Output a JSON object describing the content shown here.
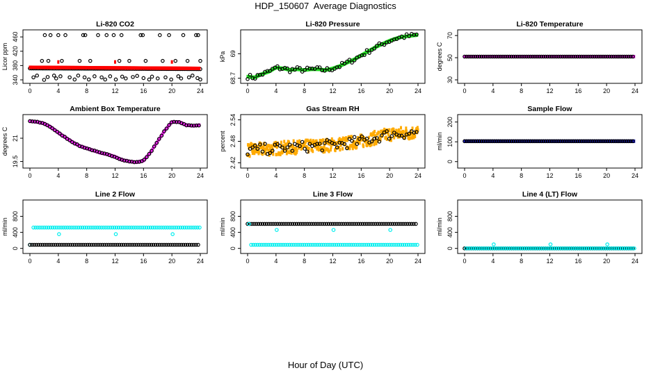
{
  "page": {
    "title": "HDP_150607  Average Diagnostics",
    "xlabel": "Hour of Day (UTC)"
  },
  "colors": {
    "red": "#ff0000",
    "green": "#22dd22",
    "magenta": "#ee22ee",
    "orange": "#ffaa00",
    "blue": "#1a1acc",
    "cyan": "#00eeee",
    "black": "#000000"
  },
  "chart_data": [
    {
      "type": "scatter",
      "title": "Li-820 CO2",
      "ylabel": "Licor ppm",
      "xlim": [
        0,
        24
      ],
      "ylim": [
        340,
        470
      ],
      "xticks": [
        0,
        4,
        8,
        12,
        16,
        20,
        24
      ],
      "yticks": [
        340,
        380,
        420,
        460
      ],
      "series": [
        {
          "style": "black-circle",
          "trend": {
            "from": 372,
            "to": 370
          },
          "spikes": [
            {
              "x": 2.1,
              "y": 465
            },
            {
              "x": 2.9,
              "y": 465
            },
            {
              "x": 4.0,
              "y": 465
            },
            {
              "x": 5.0,
              "y": 465
            },
            {
              "x": 7.5,
              "y": 465
            },
            {
              "x": 7.8,
              "y": 465
            },
            {
              "x": 9.6,
              "y": 465
            },
            {
              "x": 10.8,
              "y": 465
            },
            {
              "x": 11.8,
              "y": 465
            },
            {
              "x": 12.9,
              "y": 465
            },
            {
              "x": 15.6,
              "y": 465
            },
            {
              "x": 15.9,
              "y": 465
            },
            {
              "x": 18.3,
              "y": 465
            },
            {
              "x": 19.6,
              "y": 465
            },
            {
              "x": 21.6,
              "y": 465
            },
            {
              "x": 23.4,
              "y": 465
            },
            {
              "x": 23.7,
              "y": 465
            },
            {
              "x": 1.7,
              "y": 393
            },
            {
              "x": 2.6,
              "y": 393
            },
            {
              "x": 4.5,
              "y": 393
            },
            {
              "x": 7.0,
              "y": 393
            },
            {
              "x": 8.5,
              "y": 393
            },
            {
              "x": 12.6,
              "y": 393
            },
            {
              "x": 14.0,
              "y": 393
            },
            {
              "x": 16.3,
              "y": 393
            },
            {
              "x": 18.7,
              "y": 393
            },
            {
              "x": 20.5,
              "y": 393
            },
            {
              "x": 22.2,
              "y": 393
            },
            {
              "x": 24.0,
              "y": 393
            },
            {
              "x": 0.5,
              "y": 347
            },
            {
              "x": 1.0,
              "y": 352
            },
            {
              "x": 2.0,
              "y": 340
            },
            {
              "x": 2.5,
              "y": 348
            },
            {
              "x": 3.4,
              "y": 352
            },
            {
              "x": 3.7,
              "y": 344
            },
            {
              "x": 4.3,
              "y": 350
            },
            {
              "x": 5.6,
              "y": 347
            },
            {
              "x": 6.3,
              "y": 341
            },
            {
              "x": 6.8,
              "y": 352
            },
            {
              "x": 7.7,
              "y": 347
            },
            {
              "x": 8.3,
              "y": 341
            },
            {
              "x": 9.1,
              "y": 350
            },
            {
              "x": 10.1,
              "y": 347
            },
            {
              "x": 10.6,
              "y": 341
            },
            {
              "x": 11.3,
              "y": 350
            },
            {
              "x": 12.1,
              "y": 341
            },
            {
              "x": 13.0,
              "y": 349
            },
            {
              "x": 13.5,
              "y": 344
            },
            {
              "x": 14.5,
              "y": 348
            },
            {
              "x": 15.1,
              "y": 351
            },
            {
              "x": 16.0,
              "y": 345
            },
            {
              "x": 16.8,
              "y": 341
            },
            {
              "x": 17.2,
              "y": 349
            },
            {
              "x": 18.0,
              "y": 344
            },
            {
              "x": 19.1,
              "y": 347
            },
            {
              "x": 19.9,
              "y": 341
            },
            {
              "x": 20.9,
              "y": 350
            },
            {
              "x": 21.3,
              "y": 344
            },
            {
              "x": 22.4,
              "y": 347
            },
            {
              "x": 22.9,
              "y": 352
            },
            {
              "x": 23.6,
              "y": 345
            },
            {
              "x": 24.0,
              "y": 341
            }
          ]
        },
        {
          "style": "red-band",
          "from": 375,
          "to": 372,
          "spikes": [
            {
              "x": 4.0,
              "y": 390
            },
            {
              "x": 12.0,
              "y": 390
            },
            {
              "x": 20.0,
              "y": 390
            }
          ]
        }
      ]
    },
    {
      "type": "scatter",
      "title": "Li-820 Pressure",
      "ylabel": "kPa",
      "xlim": [
        0,
        24
      ],
      "ylim": [
        68.68,
        69.25
      ],
      "xticks": [
        0,
        4,
        8,
        12,
        16,
        20,
        24
      ],
      "yticks": [
        68.7,
        69.0
      ],
      "series": [
        {
          "style": "green-band",
          "x": [
            0,
            1,
            2,
            3,
            4,
            5,
            6,
            7,
            8,
            9,
            10,
            11,
            12,
            13,
            14,
            15,
            16,
            17,
            18,
            19,
            20,
            21,
            22,
            23,
            24
          ],
          "y": [
            68.72,
            68.71,
            68.75,
            68.78,
            68.83,
            68.82,
            68.8,
            68.81,
            68.8,
            68.81,
            68.81,
            68.8,
            68.82,
            68.85,
            68.89,
            68.93,
            68.98,
            69.03,
            69.08,
            69.12,
            69.16,
            69.19,
            69.21,
            69.22,
            69.23
          ]
        },
        {
          "style": "black-circle",
          "scatter": 0.03,
          "label": "points follow same trend"
        }
      ]
    },
    {
      "type": "scatter",
      "title": "Li-820 Temperature",
      "ylabel": "degrees C",
      "xlim": [
        0,
        24
      ],
      "ylim": [
        30,
        72
      ],
      "xticks": [
        0,
        4,
        8,
        12,
        16,
        20,
        24
      ],
      "yticks": [
        30,
        50,
        70
      ],
      "series": [
        {
          "style": "magenta-band",
          "value": 51
        },
        {
          "style": "black-circle",
          "value": 51
        }
      ]
    },
    {
      "type": "scatter",
      "title": "Ambient Box Temperature",
      "ylabel": "degrees C",
      "xlim": [
        0,
        24
      ],
      "ylim": [
        19.3,
        22.3
      ],
      "xticks": [
        0,
        4,
        8,
        12,
        16,
        20,
        24
      ],
      "yticks": [
        19.5,
        21.0
      ],
      "series": [
        {
          "style": "magenta-band",
          "x": [
            0,
            1,
            2,
            3,
            4,
            5,
            6,
            7,
            8,
            9,
            10,
            11,
            12,
            13,
            14,
            15,
            16,
            17,
            18,
            19,
            20,
            21,
            22,
            23,
            24
          ],
          "y": [
            22.1,
            22.05,
            21.95,
            21.7,
            21.35,
            21.05,
            20.75,
            20.5,
            20.35,
            20.2,
            20.05,
            19.95,
            19.8,
            19.6,
            19.5,
            19.45,
            19.55,
            20.1,
            20.8,
            21.5,
            22.05,
            22.05,
            21.85,
            21.8,
            21.85
          ]
        },
        {
          "style": "black-circle",
          "scatter": 0.02,
          "label": "points follow same trend"
        }
      ]
    },
    {
      "type": "scatter",
      "title": "Gas Stream RH",
      "ylabel": "percent",
      "xlim": [
        0,
        24
      ],
      "ylim": [
        2.415,
        2.545
      ],
      "xticks": [
        0,
        4,
        8,
        12,
        16,
        20,
        24
      ],
      "yticks": [
        2.42,
        2.48,
        2.54
      ],
      "series": [
        {
          "style": "orange-cloud",
          "x": [
            0,
            4,
            8,
            12,
            16,
            20,
            24
          ],
          "y": [
            2.455,
            2.46,
            2.465,
            2.47,
            2.48,
            2.5,
            2.505
          ],
          "spread": 0.018
        },
        {
          "style": "black-circle",
          "scatter": 0.015,
          "label": "points follow same trend"
        }
      ]
    },
    {
      "type": "scatter",
      "title": "Sample Flow",
      "ylabel": "ml/min",
      "xlim": [
        0,
        24
      ],
      "ylim": [
        -15,
        220
      ],
      "xticks": [
        0,
        4,
        8,
        12,
        16,
        20,
        24
      ],
      "yticks": [
        0,
        100,
        200
      ],
      "series": [
        {
          "style": "blue-band",
          "value": 103
        },
        {
          "style": "black-circle",
          "value": 103
        }
      ]
    },
    {
      "type": "scatter",
      "title": "Line 2 Flow",
      "ylabel": "ml/min",
      "xlim": [
        0,
        24
      ],
      "ylim": [
        -40,
        1120
      ],
      "xticks": [
        0,
        4,
        8,
        12,
        16,
        20,
        24
      ],
      "yticks": [
        0,
        400,
        800
      ],
      "series": [
        {
          "style": "cyan-circle",
          "value": 520,
          "spikes": [
            {
              "x": 4.1,
              "y": 355
            },
            {
              "x": 12.1,
              "y": 355
            },
            {
              "x": 20.1,
              "y": 355
            }
          ],
          "start": {
            "x": 0,
            "y": 90
          }
        },
        {
          "style": "black-circle",
          "value": 90
        }
      ]
    },
    {
      "type": "scatter",
      "title": "Line 3 Flow",
      "ylabel": "ml/min",
      "xlim": [
        0,
        24
      ],
      "ylim": [
        -40,
        1120
      ],
      "xticks": [
        0,
        4,
        8,
        12,
        16,
        20,
        24
      ],
      "yticks": [
        0,
        400,
        800
      ],
      "series": [
        {
          "style": "black-circle",
          "value": 610
        },
        {
          "style": "cyan-circle",
          "value": 90,
          "spikes": [
            {
              "x": 4.1,
              "y": 460
            },
            {
              "x": 12.1,
              "y": 460
            },
            {
              "x": 20.1,
              "y": 460
            }
          ],
          "start": {
            "x": 0.2,
            "y": 610
          }
        }
      ]
    },
    {
      "type": "scatter",
      "title": "Line 4 (LT) Flow",
      "ylabel": "ml/min",
      "xlim": [
        0,
        24
      ],
      "ylim": [
        -40,
        1120
      ],
      "xticks": [
        0,
        4,
        8,
        12,
        16,
        20,
        24
      ],
      "yticks": [
        0,
        400,
        800
      ],
      "series": [
        {
          "style": "black-circle",
          "value": 0
        },
        {
          "style": "cyan-circle",
          "value": 0,
          "spikes": [
            {
              "x": 4.1,
              "y": 100
            },
            {
              "x": 12.1,
              "y": 100
            },
            {
              "x": 20.1,
              "y": 100
            }
          ],
          "start": {
            "x": 0.2,
            "y": 0
          }
        }
      ]
    }
  ]
}
